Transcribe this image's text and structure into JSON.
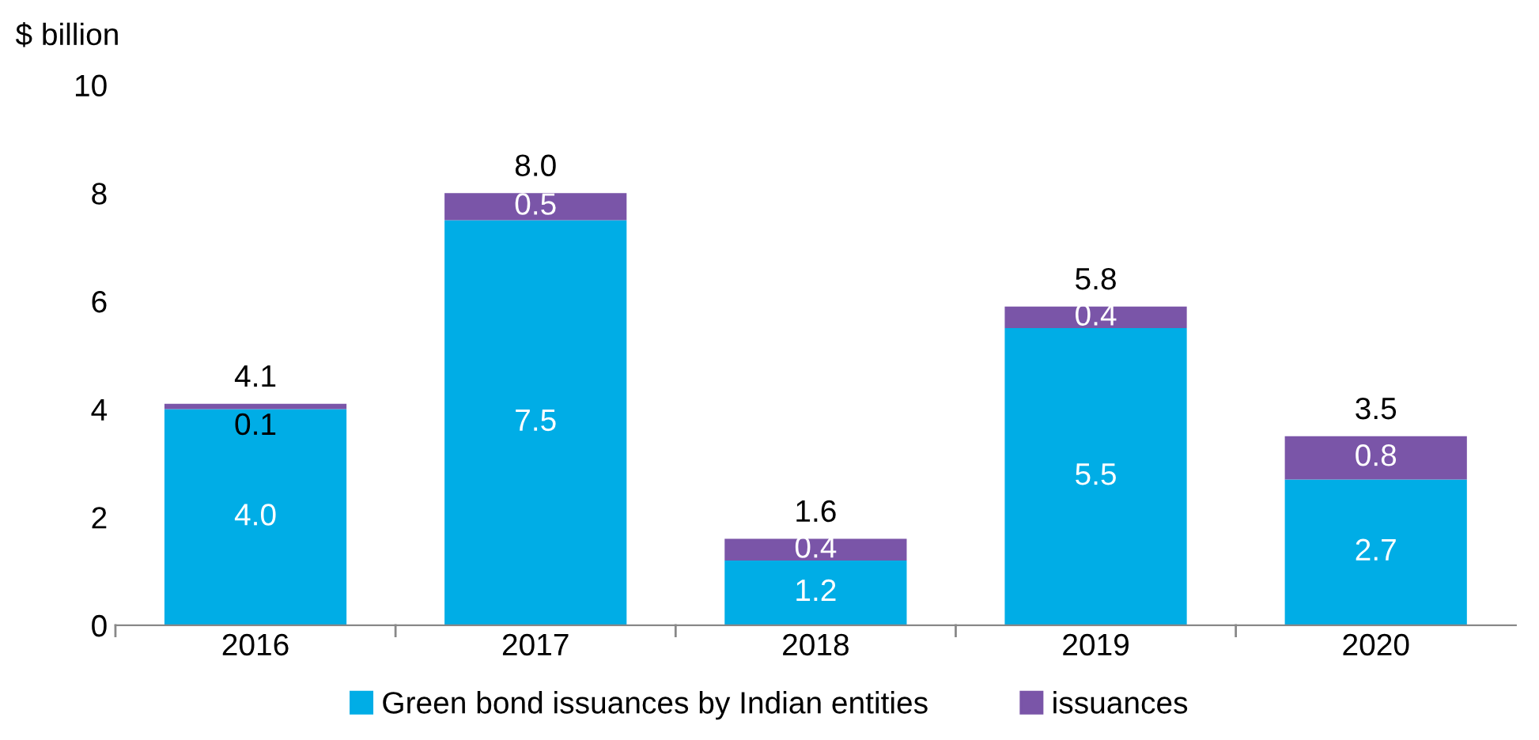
{
  "chart_data": {
    "type": "bar",
    "stacked": true,
    "ylabel": "$ billion",
    "categories": [
      "2016",
      "2017",
      "2018",
      "2019",
      "2020"
    ],
    "series": [
      {
        "name": "Green bond issuances by Indian entities",
        "color": "#00ade6",
        "values": [
          4.0,
          7.5,
          1.2,
          5.5,
          2.7
        ],
        "value_labels": [
          "4.0",
          "7.5",
          "1.2",
          "5.5",
          "2.7"
        ]
      },
      {
        "name": "issuances",
        "color": "#7a55a8",
        "values": [
          0.1,
          0.5,
          0.4,
          0.4,
          0.8
        ],
        "value_labels": [
          "0.1",
          "0.5",
          "0.4",
          "0.4",
          "0.8"
        ]
      }
    ],
    "totals": [
      "4.1",
      "8.0",
      "1.6",
      "5.8",
      "3.5"
    ],
    "ylim": [
      0,
      10
    ],
    "yticks": [
      0,
      2,
      4,
      6,
      8,
      10
    ],
    "grid": false,
    "legend": "bottom"
  }
}
